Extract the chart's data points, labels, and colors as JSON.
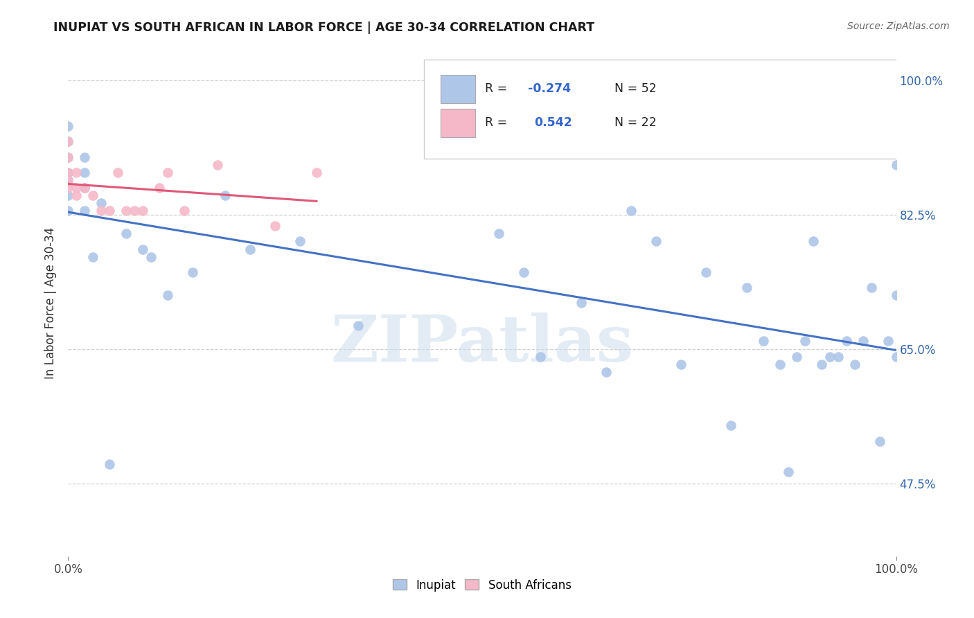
{
  "title": "INUPIAT VS SOUTH AFRICAN IN LABOR FORCE | AGE 30-34 CORRELATION CHART",
  "source_text": "Source: ZipAtlas.com",
  "ylabel": "In Labor Force | Age 30-34",
  "xlim": [
    0.0,
    1.0
  ],
  "ylim": [
    0.38,
    1.04
  ],
  "ytick_positions": [
    0.475,
    0.65,
    0.825,
    1.0
  ],
  "ytick_labels": [
    "47.5%",
    "65.0%",
    "82.5%",
    "100.0%"
  ],
  "watermark_text": "ZIPatlas",
  "legend_r_inupiat": "-0.274",
  "legend_n_inupiat": "52",
  "legend_r_south_african": "0.542",
  "legend_n_south_african": "22",
  "inupiat_color": "#aec6e8",
  "south_african_color": "#f4b8c8",
  "inupiat_line_color": "#4472c4",
  "south_african_line_color": "#e05878",
  "inupiat_scatter_x": [
    0.0,
    0.0,
    0.0,
    0.0,
    0.0,
    0.0,
    0.0,
    0.02,
    0.02,
    0.02,
    0.02,
    0.03,
    0.04,
    0.05,
    0.07,
    0.09,
    0.1,
    0.12,
    0.15,
    0.19,
    0.22,
    0.28,
    0.35,
    0.52,
    0.55,
    0.57,
    0.62,
    0.65,
    0.68,
    0.71,
    0.74,
    0.77,
    0.8,
    0.82,
    0.84,
    0.86,
    0.87,
    0.88,
    0.89,
    0.9,
    0.91,
    0.92,
    0.93,
    0.94,
    0.95,
    0.96,
    0.97,
    0.98,
    0.99,
    1.0,
    1.0,
    1.0
  ],
  "inupiat_scatter_y": [
    0.83,
    0.85,
    0.87,
    0.88,
    0.9,
    0.92,
    0.94,
    0.83,
    0.86,
    0.88,
    0.9,
    0.77,
    0.84,
    0.5,
    0.8,
    0.78,
    0.77,
    0.72,
    0.75,
    0.85,
    0.78,
    0.79,
    0.68,
    0.8,
    0.75,
    0.64,
    0.71,
    0.62,
    0.83,
    0.79,
    0.63,
    0.75,
    0.55,
    0.73,
    0.66,
    0.63,
    0.49,
    0.64,
    0.66,
    0.79,
    0.63,
    0.64,
    0.64,
    0.66,
    0.63,
    0.66,
    0.73,
    0.53,
    0.66,
    0.72,
    0.89,
    0.64
  ],
  "south_african_scatter_x": [
    0.0,
    0.0,
    0.0,
    0.0,
    0.0,
    0.01,
    0.01,
    0.01,
    0.02,
    0.03,
    0.04,
    0.05,
    0.06,
    0.07,
    0.08,
    0.09,
    0.11,
    0.12,
    0.14,
    0.18,
    0.25,
    0.3
  ],
  "south_african_scatter_y": [
    0.86,
    0.87,
    0.88,
    0.9,
    0.92,
    0.85,
    0.86,
    0.88,
    0.86,
    0.85,
    0.83,
    0.83,
    0.88,
    0.83,
    0.83,
    0.83,
    0.86,
    0.88,
    0.83,
    0.89,
    0.81,
    0.88
  ]
}
